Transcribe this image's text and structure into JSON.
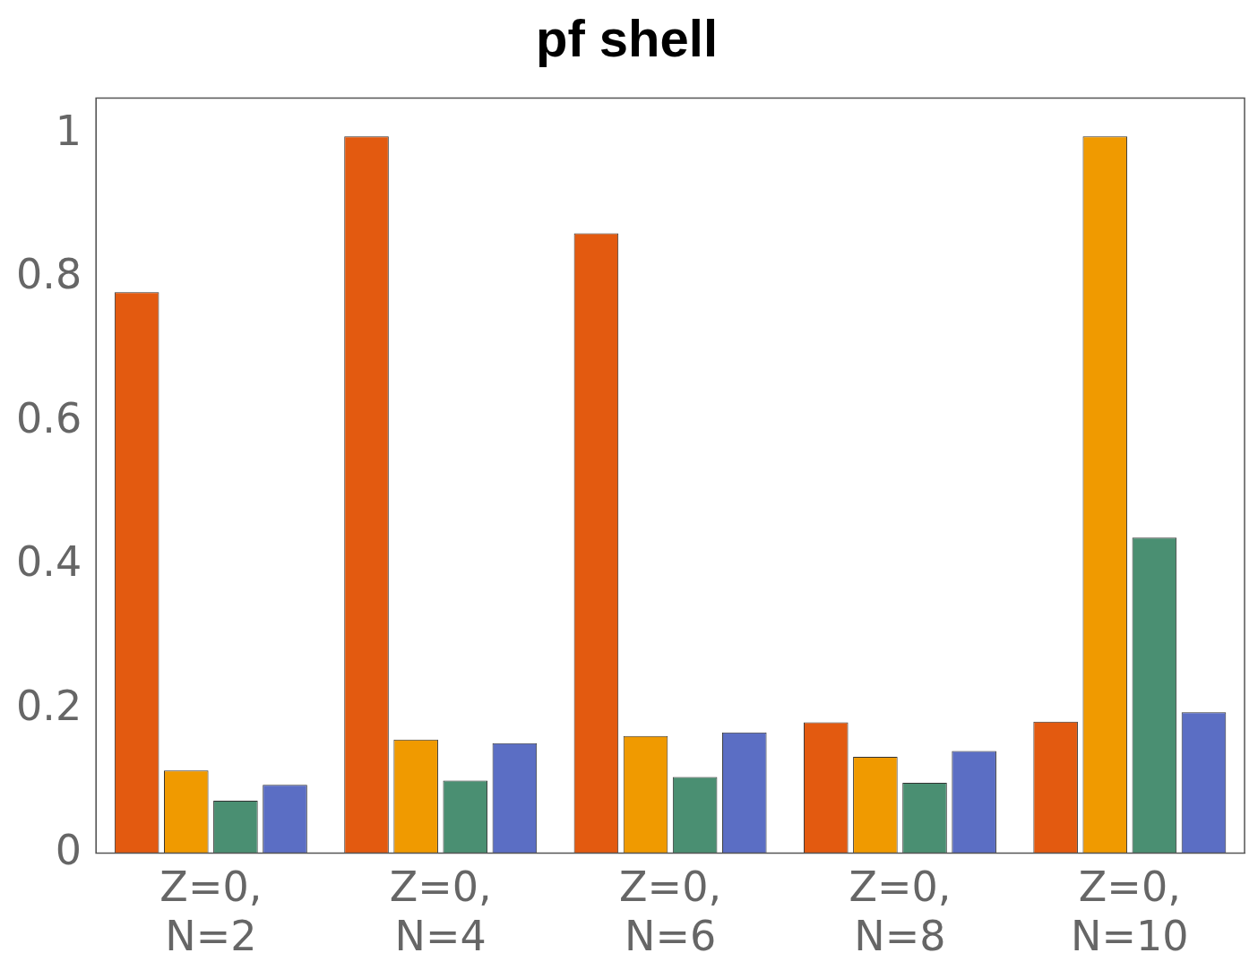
{
  "chart_data": {
    "type": "bar",
    "title": "pf shell",
    "categories": [
      "Z=0,\nN=2",
      "Z=0,\nN=4",
      "Z=0,\nN=6",
      "Z=0,\nN=8",
      "Z=0,\nN=10"
    ],
    "series": [
      {
        "color": "#e35a10",
        "values": [
          0.78,
          0.997,
          0.862,
          0.182,
          0.183
        ]
      },
      {
        "color": "#f09a00",
        "values": [
          0.115,
          0.158,
          0.163,
          0.134,
          0.997
        ]
      },
      {
        "color": "#4a8f72",
        "values": [
          0.073,
          0.101,
          0.106,
          0.098,
          0.439
        ]
      },
      {
        "color": "#5b6ec4",
        "values": [
          0.095,
          0.153,
          0.168,
          0.142,
          0.196
        ]
      }
    ],
    "ylim": [
      0,
      1.05
    ],
    "yticks": [
      0,
      0.2,
      0.4,
      0.6,
      0.8,
      1
    ],
    "grid": false,
    "legend": false
  }
}
